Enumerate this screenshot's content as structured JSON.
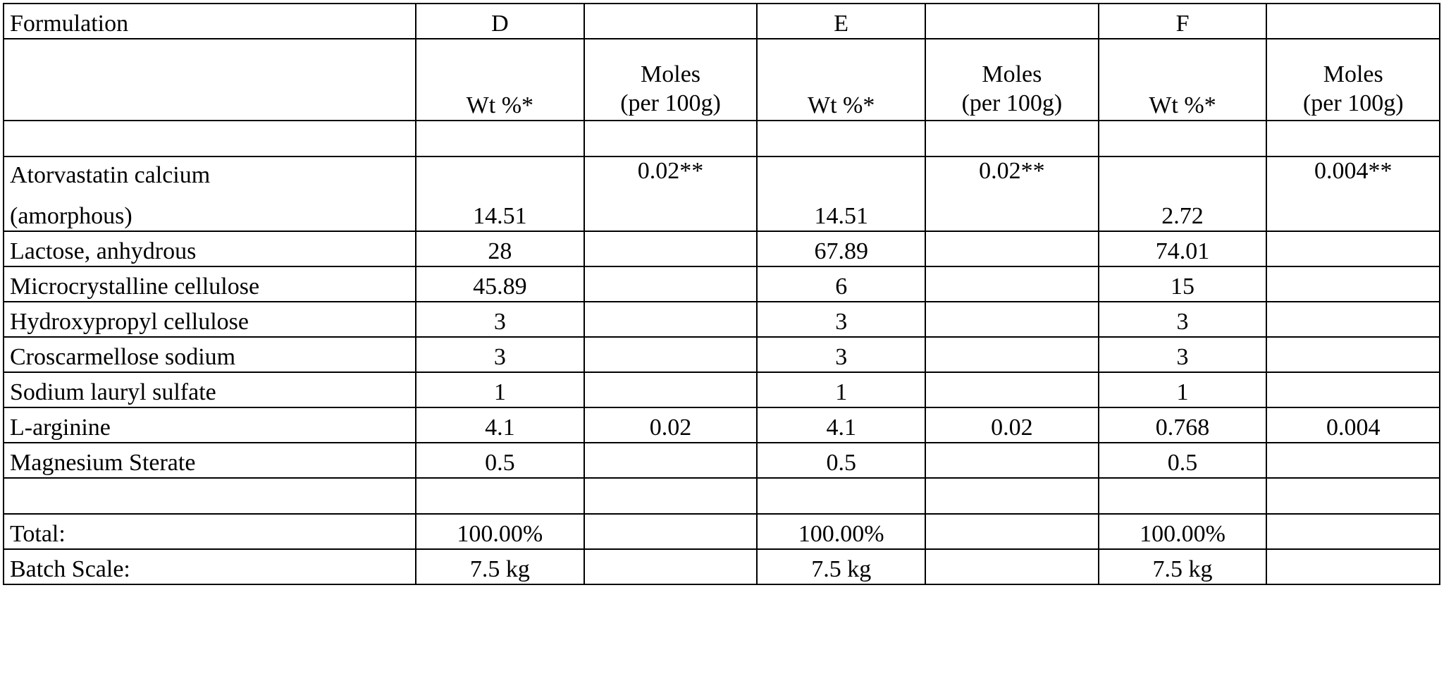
{
  "table": {
    "header": {
      "formulation_label": "Formulation",
      "groups": [
        "D",
        "E",
        "F"
      ]
    },
    "subheader": {
      "wt_label": "Wt %*",
      "moles_line1": "Moles",
      "moles_line2": "(per 100g)"
    },
    "rows": [
      {
        "name_line1": "Atorvastatin calcium",
        "name_line2": "(amorphous)",
        "D_wt": "14.51",
        "D_moles": "0.02**",
        "E_wt": "14.51",
        "E_moles": "0.02**",
        "F_wt": "2.72",
        "F_moles": "0.004**"
      },
      {
        "name": "Lactose, anhydrous",
        "D_wt": "28",
        "D_moles": "",
        "E_wt": "67.89",
        "E_moles": "",
        "F_wt": "74.01",
        "F_moles": ""
      },
      {
        "name": "Microcrystalline cellulose",
        "D_wt": "45.89",
        "D_moles": "",
        "E_wt": "6",
        "E_moles": "",
        "F_wt": "15",
        "F_moles": ""
      },
      {
        "name": "Hydroxypropyl cellulose",
        "D_wt": "3",
        "D_moles": "",
        "E_wt": "3",
        "E_moles": "",
        "F_wt": "3",
        "F_moles": ""
      },
      {
        "name": "Croscarmellose sodium",
        "D_wt": "3",
        "D_moles": "",
        "E_wt": "3",
        "E_moles": "",
        "F_wt": "3",
        "F_moles": ""
      },
      {
        "name": "Sodium lauryl sulfate",
        "D_wt": "1",
        "D_moles": "",
        "E_wt": "1",
        "E_moles": "",
        "F_wt": "1",
        "F_moles": ""
      },
      {
        "name": "L-arginine",
        "D_wt": "4.1",
        "D_moles": "0.02",
        "E_wt": "4.1",
        "E_moles": "0.02",
        "F_wt": "0.768",
        "F_moles": "0.004"
      },
      {
        "name": "Magnesium Sterate",
        "D_wt": "0.5",
        "D_moles": "",
        "E_wt": "0.5",
        "E_moles": "",
        "F_wt": "0.5",
        "F_moles": ""
      }
    ],
    "total": {
      "label": "Total:",
      "D": "100.00%",
      "E": "100.00%",
      "F": "100.00%"
    },
    "batch": {
      "label": "Batch Scale:",
      "D": "7.5 kg",
      "E": "7.5 kg",
      "F": "7.5 kg"
    }
  }
}
